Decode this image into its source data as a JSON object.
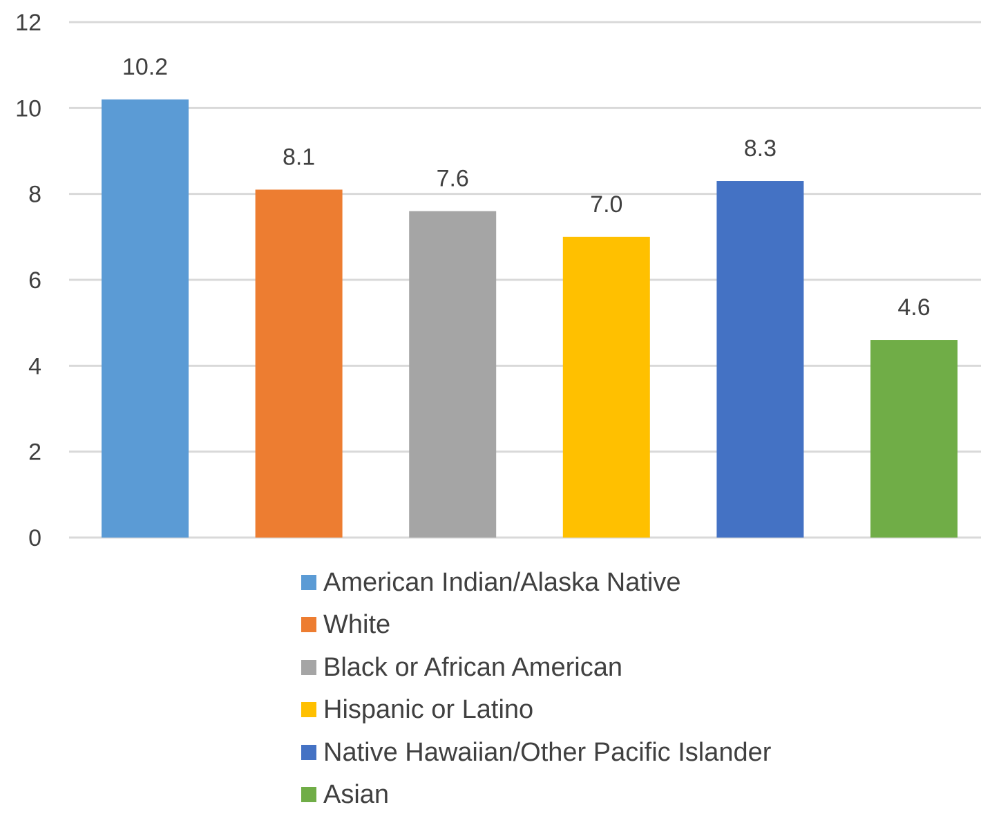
{
  "chart_data": {
    "type": "bar",
    "title": "",
    "xlabel": "",
    "ylabel": "",
    "ylim": [
      0,
      12
    ],
    "yticks": [
      0,
      2,
      4,
      6,
      8,
      10,
      12
    ],
    "grid": true,
    "legend_position": "bottom",
    "data_labels": [
      "10.2",
      "8.1",
      "7.6",
      "7.0",
      "8.3",
      "4.6"
    ],
    "categories": [
      "American Indian/Alaska Native",
      "White",
      "Black or African American",
      "Hispanic or Latino",
      "Native Hawaiian/Other Pacific Islander",
      "Asian"
    ],
    "values": [
      10.2,
      8.1,
      7.6,
      7.0,
      8.3,
      4.6
    ],
    "colors": [
      "#5B9BD5",
      "#ED7D31",
      "#A5A5A5",
      "#FFC000",
      "#4472C4",
      "#70AD47"
    ]
  }
}
